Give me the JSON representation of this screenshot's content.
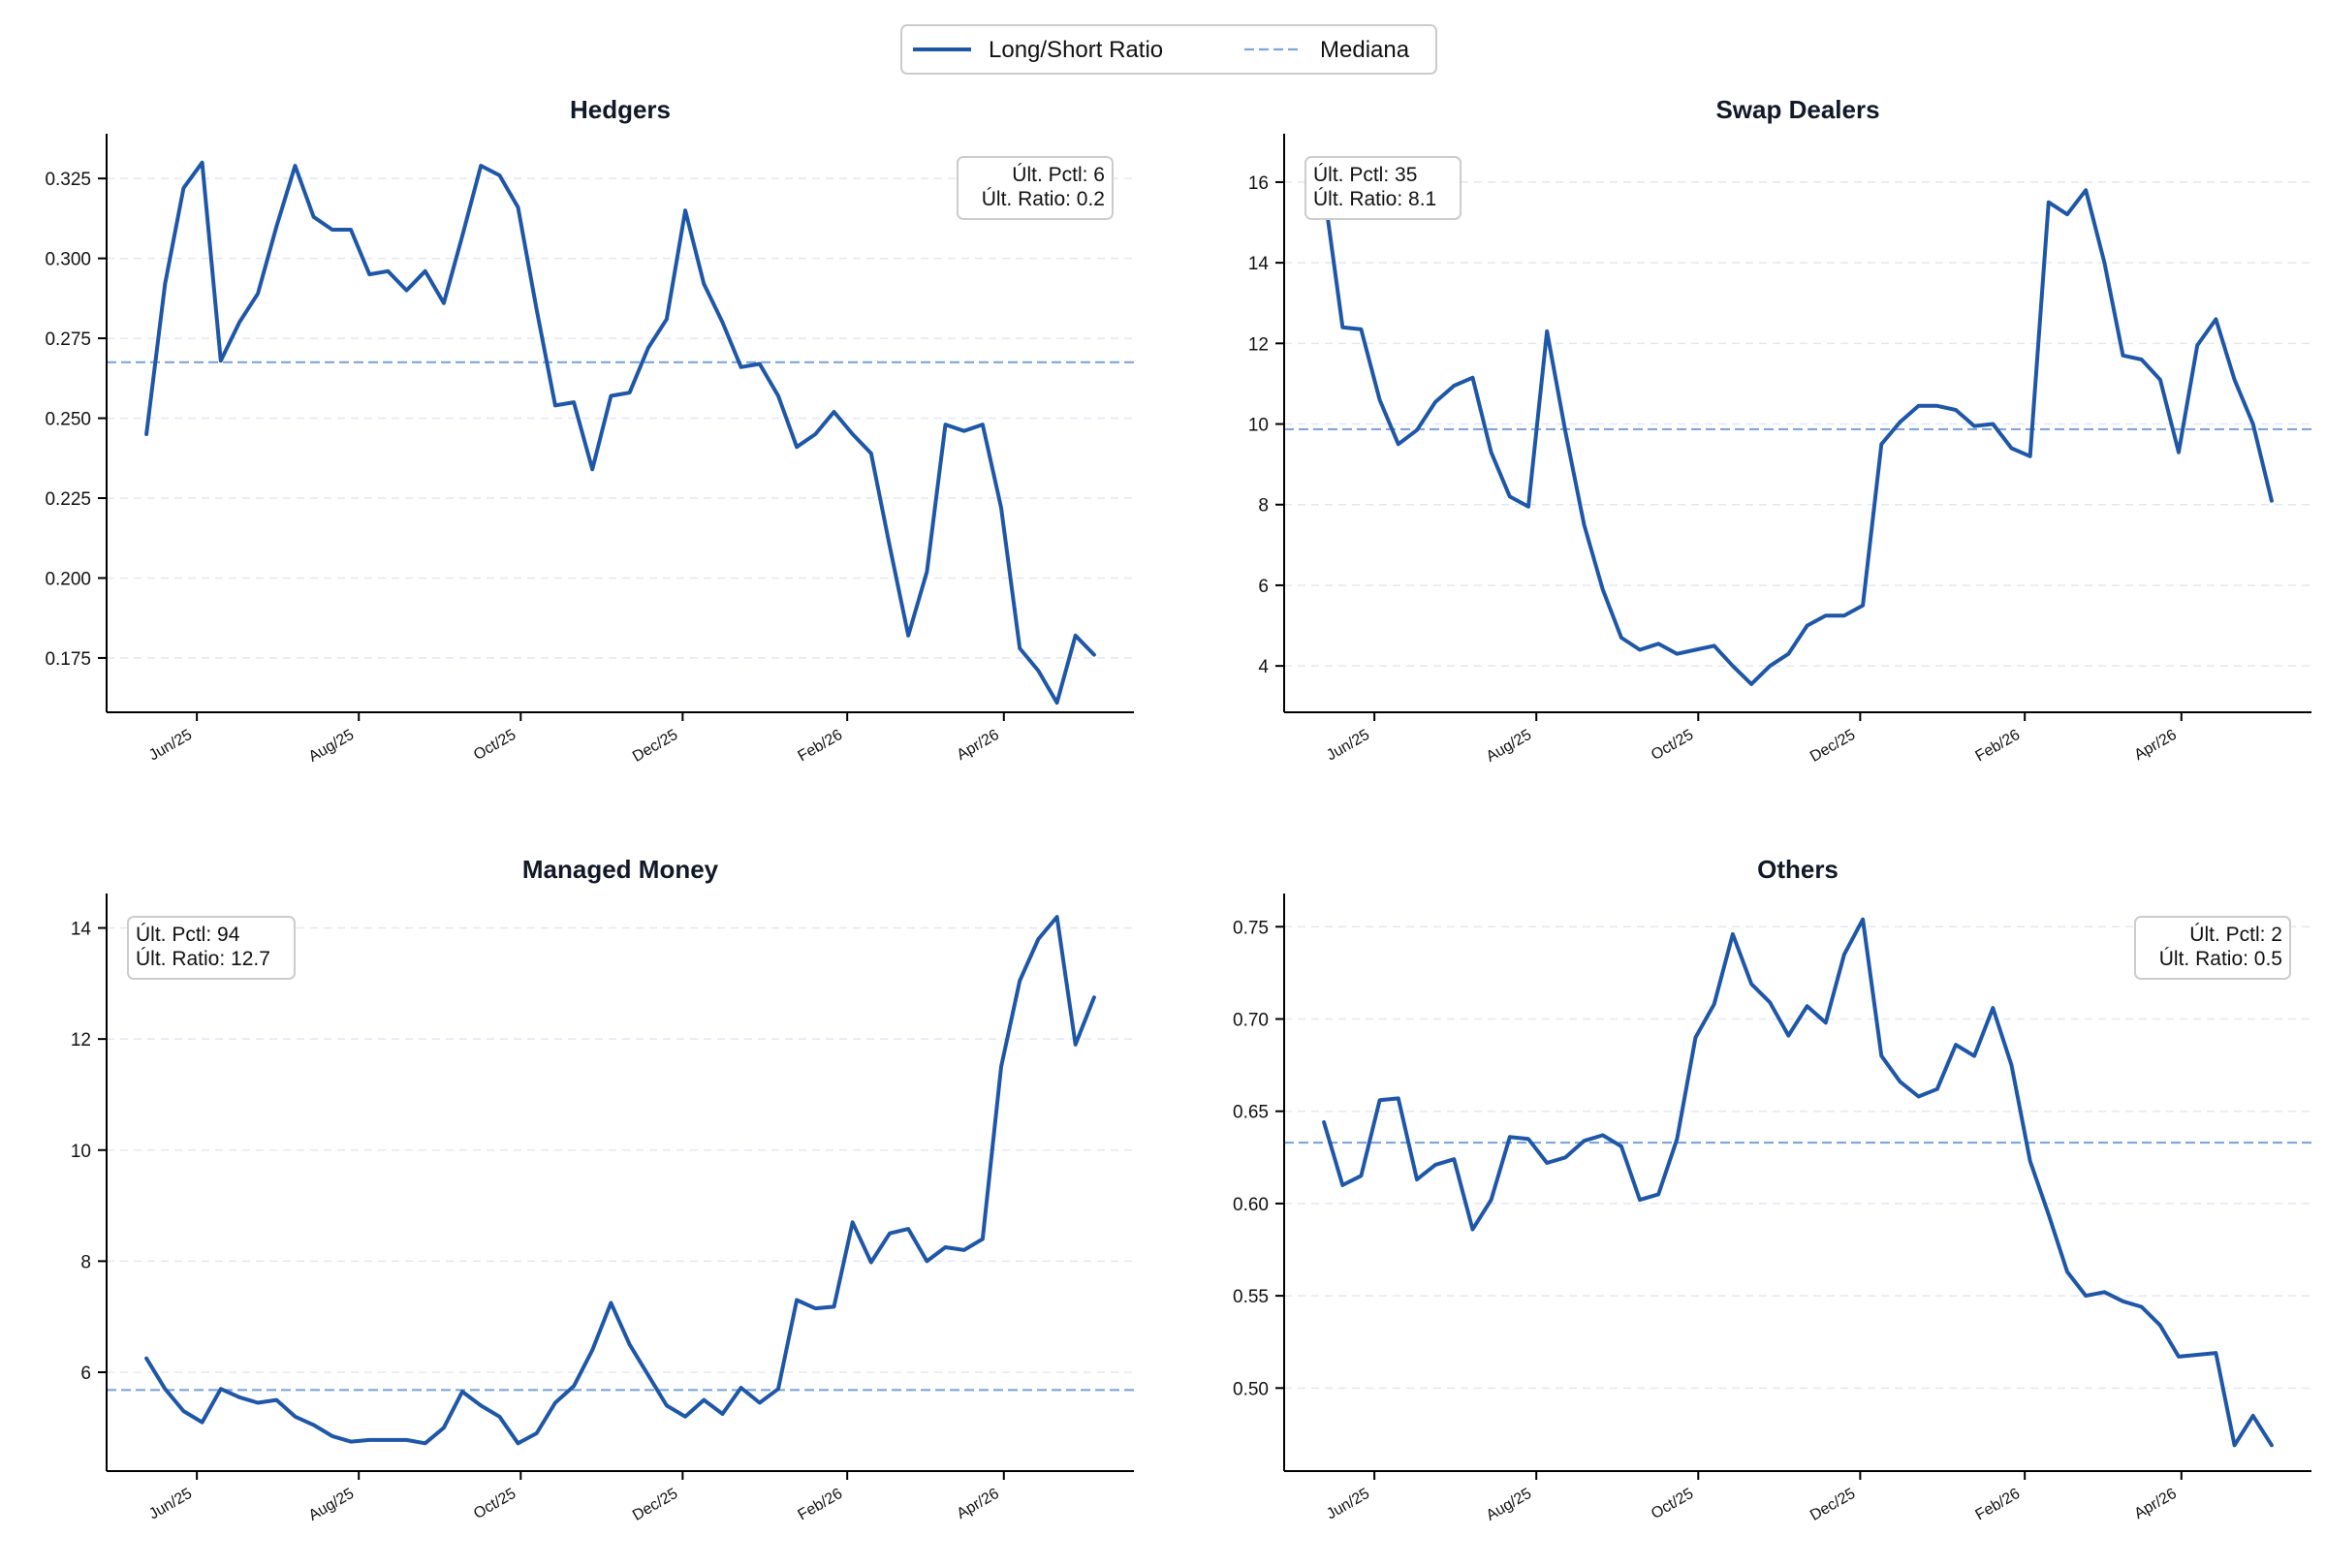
{
  "legend": {
    "series_label": "Long/Short Ratio",
    "median_label": "Mediana"
  },
  "colors": {
    "series": "#1f57a8",
    "median": "#7ea6d8"
  },
  "x_ticks": [
    "Jun/25",
    "Aug/25",
    "Oct/25",
    "Dec/25",
    "Feb/26",
    "Apr/26"
  ],
  "chart_data": [
    {
      "type": "line",
      "title": "Hedgers",
      "ylim": [
        0.158,
        0.339
      ],
      "yticks": [
        0.175,
        0.2,
        0.225,
        0.25,
        0.275,
        0.3,
        0.325
      ],
      "ytick_labels": [
        "0.175",
        "0.200",
        "0.225",
        "0.250",
        "0.275",
        "0.300",
        "0.325"
      ],
      "median": 0.2675,
      "info_lines": [
        "Últ. Pctl: 6",
        "Últ. Ratio: 0.2"
      ],
      "info_position": "top-right",
      "x": [
        "2025-05-13",
        "2025-05-20",
        "2025-05-27",
        "2025-06-03",
        "2025-06-10",
        "2025-06-17",
        "2025-06-24",
        "2025-07-01",
        "2025-07-08",
        "2025-07-15",
        "2025-07-22",
        "2025-07-29",
        "2025-08-05",
        "2025-08-12",
        "2025-08-19",
        "2025-08-26",
        "2025-09-02",
        "2025-09-09",
        "2025-09-16",
        "2025-09-23",
        "2025-09-30",
        "2025-10-07",
        "2025-10-14",
        "2025-10-21",
        "2025-10-28",
        "2025-11-04",
        "2025-11-11",
        "2025-11-18",
        "2025-11-25",
        "2025-12-02",
        "2025-12-09",
        "2025-12-16",
        "2025-12-23",
        "2025-12-30",
        "2026-01-06",
        "2026-01-13",
        "2026-01-20",
        "2026-01-27",
        "2026-02-03",
        "2026-02-10",
        "2026-02-17",
        "2026-02-24",
        "2026-03-03",
        "2026-03-10",
        "2026-03-17",
        "2026-03-24",
        "2026-03-31",
        "2026-04-07",
        "2026-04-14",
        "2026-04-21",
        "2026-04-28",
        "2026-05-05"
      ],
      "series": [
        {
          "name": "Long/Short Ratio",
          "values": [
            0.245,
            0.292,
            0.322,
            0.33,
            0.268,
            0.28,
            0.289,
            0.31,
            0.329,
            0.313,
            0.309,
            0.309,
            0.295,
            0.296,
            0.29,
            0.296,
            0.286,
            0.307,
            0.329,
            0.326,
            0.316,
            0.284,
            0.254,
            0.255,
            0.234,
            0.257,
            0.258,
            0.272,
            0.281,
            0.315,
            0.292,
            0.28,
            0.266,
            0.267,
            0.257,
            0.241,
            0.245,
            0.252,
            0.245,
            0.239,
            0.21,
            0.182,
            0.202,
            0.248,
            0.246,
            0.248,
            0.222,
            0.178,
            0.171,
            0.161,
            0.182,
            0.176
          ]
        }
      ]
    },
    {
      "type": "line",
      "title": "Swap Dealers",
      "ylim": [
        2.85,
        17.2
      ],
      "yticks": [
        4,
        6,
        8,
        10,
        12,
        14,
        16
      ],
      "ytick_labels": [
        "4",
        "6",
        "8",
        "10",
        "12",
        "14",
        "16"
      ],
      "median": 9.87,
      "info_lines": [
        "Últ. Pctl: 35",
        "Últ. Ratio: 8.1"
      ],
      "info_position": "top-left",
      "x": [
        "2025-05-13",
        "2025-05-20",
        "2025-05-27",
        "2025-06-03",
        "2025-06-10",
        "2025-06-17",
        "2025-06-24",
        "2025-07-01",
        "2025-07-08",
        "2025-07-15",
        "2025-07-22",
        "2025-07-29",
        "2025-08-05",
        "2025-08-12",
        "2025-08-19",
        "2025-08-26",
        "2025-09-02",
        "2025-09-09",
        "2025-09-16",
        "2025-09-23",
        "2025-09-30",
        "2025-10-07",
        "2025-10-14",
        "2025-10-21",
        "2025-10-28",
        "2025-11-04",
        "2025-11-11",
        "2025-11-18",
        "2025-11-25",
        "2025-12-02",
        "2025-12-09",
        "2025-12-16",
        "2025-12-23",
        "2025-12-30",
        "2026-01-06",
        "2026-01-13",
        "2026-01-20",
        "2026-01-27",
        "2026-02-03",
        "2026-02-10",
        "2026-02-17",
        "2026-02-24",
        "2026-03-03",
        "2026-03-10",
        "2026-03-17",
        "2026-03-24",
        "2026-03-31",
        "2026-04-07",
        "2026-04-14",
        "2026-04-21",
        "2026-04-28",
        "2026-05-05"
      ],
      "series": [
        {
          "name": "Long/Short Ratio",
          "values": [
            15.8,
            12.4,
            12.35,
            10.6,
            9.5,
            9.85,
            10.55,
            10.95,
            11.15,
            9.3,
            8.2,
            7.95,
            12.3,
            9.8,
            7.5,
            5.9,
            4.7,
            4.4,
            4.55,
            4.3,
            4.4,
            4.5,
            4.0,
            3.55,
            4.0,
            4.3,
            5.0,
            5.25,
            5.25,
            5.5,
            9.5,
            10.05,
            10.45,
            10.45,
            10.35,
            9.95,
            10.0,
            9.4,
            9.2,
            15.5,
            15.2,
            15.8,
            14.0,
            11.7,
            11.6,
            11.1,
            9.3,
            11.95,
            12.6,
            11.1,
            10.0,
            8.1
          ]
        }
      ]
    },
    {
      "type": "line",
      "title": "Managed Money",
      "ylim": [
        4.22,
        14.62
      ],
      "yticks": [
        6,
        8,
        10,
        12,
        14
      ],
      "ytick_labels": [
        "6",
        "8",
        "10",
        "12",
        "14"
      ],
      "median": 5.68,
      "info_lines": [
        "Últ. Pctl: 94",
        "Últ. Ratio: 12.7"
      ],
      "info_position": "top-left",
      "x": [
        "2025-05-13",
        "2025-05-20",
        "2025-05-27",
        "2025-06-03",
        "2025-06-10",
        "2025-06-17",
        "2025-06-24",
        "2025-07-01",
        "2025-07-08",
        "2025-07-15",
        "2025-07-22",
        "2025-07-29",
        "2025-08-05",
        "2025-08-12",
        "2025-08-19",
        "2025-08-26",
        "2025-09-02",
        "2025-09-09",
        "2025-09-16",
        "2025-09-23",
        "2025-09-30",
        "2025-10-07",
        "2025-10-14",
        "2025-10-21",
        "2025-10-28",
        "2025-11-04",
        "2025-11-11",
        "2025-11-18",
        "2025-11-25",
        "2025-12-02",
        "2025-12-09",
        "2025-12-16",
        "2025-12-23",
        "2025-12-30",
        "2026-01-06",
        "2026-01-13",
        "2026-01-20",
        "2026-01-27",
        "2026-02-03",
        "2026-02-10",
        "2026-02-17",
        "2026-02-24",
        "2026-03-03",
        "2026-03-10",
        "2026-03-17",
        "2026-03-24",
        "2026-03-31",
        "2026-04-07",
        "2026-04-14",
        "2026-04-21",
        "2026-04-28",
        "2026-05-05"
      ],
      "series": [
        {
          "name": "Long/Short Ratio",
          "values": [
            6.25,
            5.7,
            5.3,
            5.1,
            5.7,
            5.55,
            5.45,
            5.5,
            5.2,
            5.05,
            4.85,
            4.75,
            4.78,
            4.78,
            4.78,
            4.72,
            5.0,
            5.65,
            5.4,
            5.2,
            4.72,
            4.9,
            5.45,
            5.75,
            6.4,
            7.25,
            6.5,
            5.95,
            5.4,
            5.2,
            5.5,
            5.25,
            5.72,
            5.45,
            5.7,
            7.3,
            7.15,
            7.18,
            8.7,
            7.98,
            8.5,
            8.58,
            8.0,
            8.25,
            8.2,
            8.4,
            11.5,
            13.05,
            13.8,
            14.2,
            11.9,
            12.75
          ]
        }
      ]
    },
    {
      "type": "line",
      "title": "Others",
      "ylim": [
        0.455,
        0.768
      ],
      "yticks": [
        0.5,
        0.55,
        0.6,
        0.65,
        0.7,
        0.75
      ],
      "ytick_labels": [
        "0.50",
        "0.55",
        "0.60",
        "0.65",
        "0.70",
        "0.75"
      ],
      "median": 0.633,
      "info_lines": [
        "Últ. Pctl: 2",
        "Últ. Ratio: 0.5"
      ],
      "info_position": "top-right",
      "x": [
        "2025-05-13",
        "2025-05-20",
        "2025-05-27",
        "2025-06-03",
        "2025-06-10",
        "2025-06-17",
        "2025-06-24",
        "2025-07-01",
        "2025-07-08",
        "2025-07-15",
        "2025-07-22",
        "2025-07-29",
        "2025-08-05",
        "2025-08-12",
        "2025-08-19",
        "2025-08-26",
        "2025-09-02",
        "2025-09-09",
        "2025-09-16",
        "2025-09-23",
        "2025-09-30",
        "2025-10-07",
        "2025-10-14",
        "2025-10-21",
        "2025-10-28",
        "2025-11-04",
        "2025-11-11",
        "2025-11-18",
        "2025-11-25",
        "2025-12-02",
        "2025-12-09",
        "2025-12-16",
        "2025-12-23",
        "2025-12-30",
        "2026-01-06",
        "2026-01-13",
        "2026-01-20",
        "2026-01-27",
        "2026-02-03",
        "2026-02-10",
        "2026-02-17",
        "2026-02-24",
        "2026-03-03",
        "2026-03-10",
        "2026-03-17",
        "2026-03-24",
        "2026-03-31",
        "2026-04-07",
        "2026-04-14",
        "2026-04-21",
        "2026-04-28",
        "2026-05-05"
      ],
      "series": [
        {
          "name": "Long/Short Ratio",
          "values": [
            0.644,
            0.61,
            0.615,
            0.656,
            0.657,
            0.613,
            0.621,
            0.624,
            0.586,
            0.602,
            0.636,
            0.635,
            0.622,
            0.625,
            0.634,
            0.637,
            0.631,
            0.602,
            0.605,
            0.635,
            0.69,
            0.708,
            0.746,
            0.719,
            0.709,
            0.691,
            0.707,
            0.698,
            0.735,
            0.754,
            0.68,
            0.666,
            0.658,
            0.662,
            0.686,
            0.68,
            0.706,
            0.675,
            0.623,
            0.594,
            0.563,
            0.55,
            0.552,
            0.547,
            0.544,
            0.534,
            0.517,
            0.518,
            0.519,
            0.469,
            0.485,
            0.469
          ]
        }
      ]
    }
  ]
}
